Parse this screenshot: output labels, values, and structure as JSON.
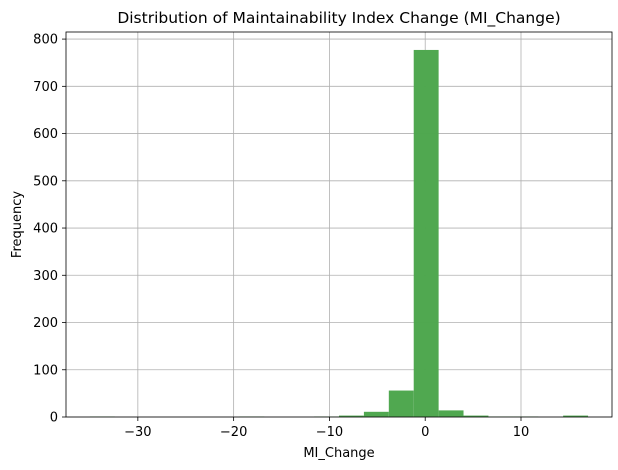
{
  "chart_data": {
    "type": "bar",
    "title": "Distribution of Maintainability Index Change (MI_Change)",
    "xlabel": "MI_Change",
    "ylabel": "Frequency",
    "xlim": [
      -37.5,
      19.5
    ],
    "ylim": [
      0,
      815
    ],
    "grid": true,
    "bar_color": "#4ca64c",
    "bar_edge_color": "#3f9a3f",
    "x_ticks": [
      -30,
      -20,
      -10,
      0,
      10
    ],
    "x_tick_labels": [
      "−30",
      "−20",
      "−10",
      "0",
      "10"
    ],
    "y_ticks": [
      0,
      100,
      200,
      300,
      400,
      500,
      600,
      700,
      800
    ],
    "y_tick_labels": [
      "0",
      "100",
      "200",
      "300",
      "400",
      "500",
      "600",
      "700",
      "800"
    ],
    "bins": [
      {
        "x0": -35.0,
        "x1": -32.4,
        "count": 1
      },
      {
        "x0": -32.4,
        "x1": -29.8,
        "count": 0
      },
      {
        "x0": -29.8,
        "x1": -27.2,
        "count": 0
      },
      {
        "x0": -27.2,
        "x1": -24.6,
        "count": 0
      },
      {
        "x0": -24.6,
        "x1": -22.0,
        "count": 0
      },
      {
        "x0": -22.0,
        "x1": -19.4,
        "count": 0
      },
      {
        "x0": -19.4,
        "x1": -16.8,
        "count": 1
      },
      {
        "x0": -16.8,
        "x1": -14.2,
        "count": 0
      },
      {
        "x0": -14.2,
        "x1": -11.6,
        "count": 0
      },
      {
        "x0": -11.6,
        "x1": -9.0,
        "count": 1
      },
      {
        "x0": -9.0,
        "x1": -6.4,
        "count": 3
      },
      {
        "x0": -6.4,
        "x1": -3.8,
        "count": 11
      },
      {
        "x0": -3.8,
        "x1": -1.2,
        "count": 56
      },
      {
        "x0": -1.2,
        "x1": 1.4,
        "count": 777
      },
      {
        "x0": 1.4,
        "x1": 4.0,
        "count": 14
      },
      {
        "x0": 4.0,
        "x1": 6.6,
        "count": 3
      },
      {
        "x0": 6.6,
        "x1": 9.2,
        "count": 1
      },
      {
        "x0": 9.2,
        "x1": 11.8,
        "count": 1
      },
      {
        "x0": 11.8,
        "x1": 14.4,
        "count": 0
      },
      {
        "x0": 14.4,
        "x1": 17.0,
        "count": 3
      }
    ]
  }
}
